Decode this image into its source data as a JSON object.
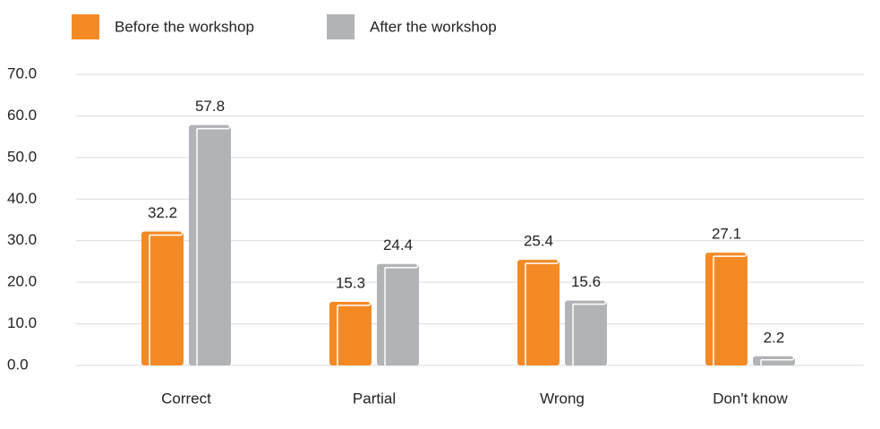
{
  "chart_data": {
    "type": "bar",
    "categories": [
      "Correct",
      "Partial",
      "Wrong",
      "Don't know"
    ],
    "series": [
      {
        "name": "Before the workshop",
        "color": "#f58a25",
        "values": [
          32.2,
          15.3,
          25.4,
          27.1
        ]
      },
      {
        "name": "After the workshop",
        "color": "#b1b3b6",
        "values": [
          57.8,
          24.4,
          15.6,
          2.2
        ]
      }
    ],
    "ylim": [
      0,
      70
    ],
    "yticks": [
      {
        "value": 0,
        "label": "0.0"
      },
      {
        "value": 10,
        "label": "10.0"
      },
      {
        "value": 20,
        "label": "20.0"
      },
      {
        "value": 30,
        "label": "30.0"
      },
      {
        "value": 40,
        "label": "40.0"
      },
      {
        "value": 50,
        "label": "50.0"
      },
      {
        "value": 60,
        "label": "60.0"
      },
      {
        "value": 70,
        "label": "70.0"
      }
    ],
    "grid": true,
    "legend": "top-left"
  }
}
